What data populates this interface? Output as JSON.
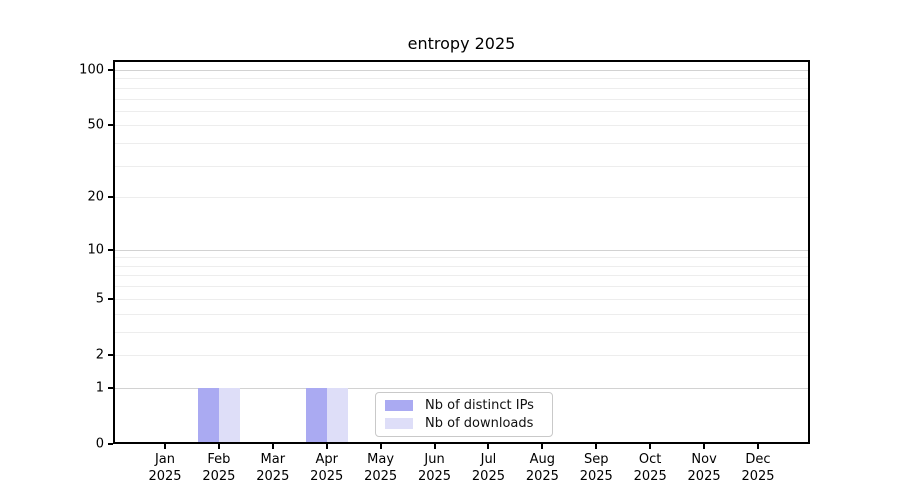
{
  "chart_data": {
    "type": "bar",
    "title": "entropy 2025",
    "x_tick_labels": [
      "Jan 2025",
      "Feb 2025",
      "Mar 2025",
      "Apr 2025",
      "May 2025",
      "Jun 2025",
      "Jul 2025",
      "Aug 2025",
      "Sep 2025",
      "Oct 2025",
      "Nov 2025",
      "Dec 2025"
    ],
    "y_tick_labels": [
      0,
      1,
      2,
      5,
      10,
      20,
      50,
      100
    ],
    "y_scale": "log1p",
    "ylim": [
      0,
      100
    ],
    "grid": "on",
    "legend_position": "lower center",
    "series": [
      {
        "name": "Nb of distinct IPs",
        "color": "#aaaaf2",
        "values": [
          0,
          1,
          0,
          1,
          0,
          0,
          0,
          0,
          0,
          0,
          0,
          0
        ]
      },
      {
        "name": "Nb of downloads",
        "color": "#dedef8",
        "values": [
          0,
          1,
          0,
          1,
          0,
          0,
          0,
          0,
          0,
          0,
          0,
          0
        ]
      }
    ]
  }
}
